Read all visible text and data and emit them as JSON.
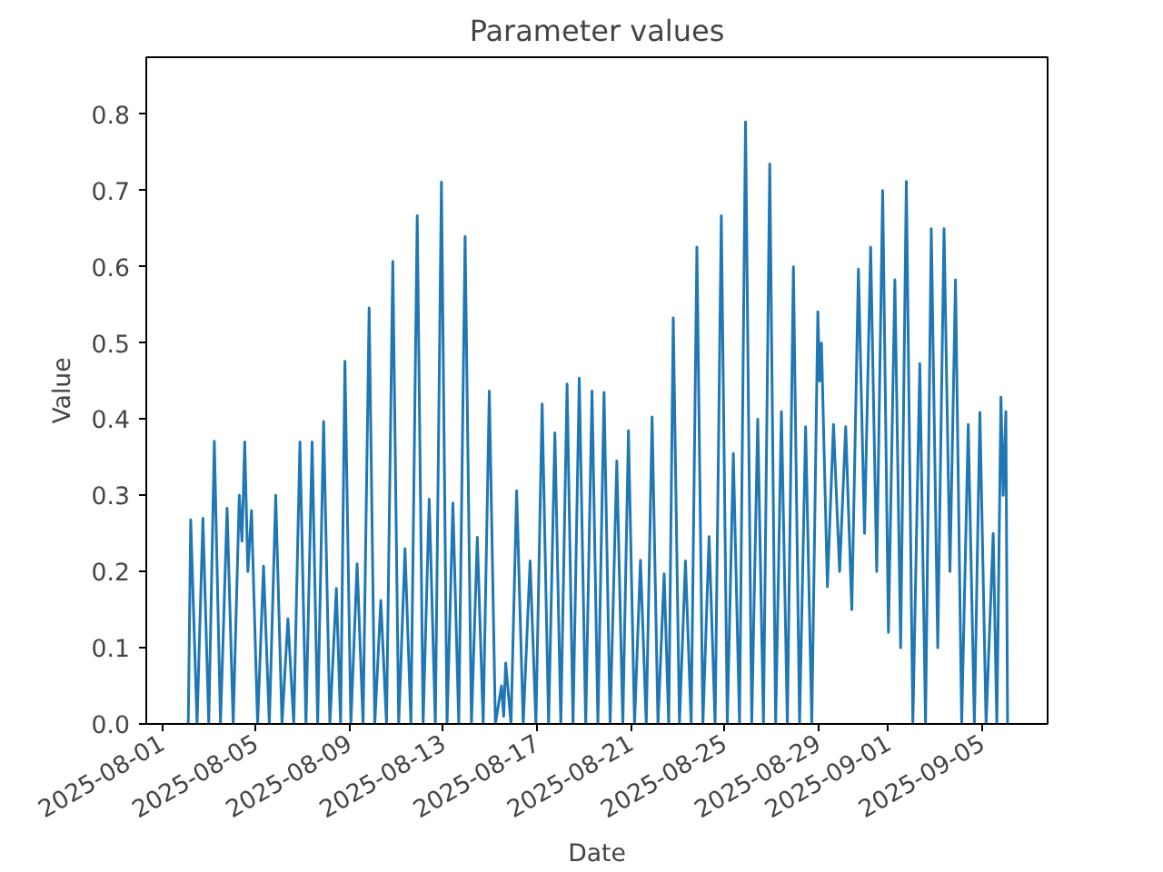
{
  "chart_data": {
    "type": "line",
    "title": "Parameter values",
    "xlabel": "Date",
    "ylabel": "Value",
    "xlim": [
      "2025-07-31T08:00",
      "2025-09-07T19:00"
    ],
    "xticks": [
      "2025-08-01",
      "2025-08-05",
      "2025-08-09",
      "2025-08-13",
      "2025-08-17",
      "2025-08-21",
      "2025-08-25",
      "2025-08-29",
      "2025-09-01",
      "2025-09-05"
    ],
    "ylim": [
      0,
      0.875
    ],
    "yticks": [
      {
        "value": 0,
        "label": "0.0"
      },
      0.1,
      0.2,
      0.3,
      0.4,
      0.5,
      0.6,
      0.7,
      0.8
    ],
    "grid": false,
    "x": [
      "2025-08-02T03:00",
      "2025-08-02T05:30",
      "2025-08-02T12:00",
      "2025-08-02T18:00",
      "2025-08-03T00:00",
      "2025-08-03T05:40",
      "2025-08-03T12:00",
      "2025-08-03T18:45",
      "2025-08-04T01:00",
      "2025-08-04T07:15",
      "2025-08-04T10:00",
      "2025-08-04T12:50",
      "2025-08-04T16:00",
      "2025-08-04T19:45",
      "2025-08-05T02:00",
      "2025-08-05T08:05",
      "2025-08-05T14:00",
      "2025-08-05T20:33",
      "2025-08-06T03:00",
      "2025-08-06T09:03",
      "2025-08-06T15:00",
      "2025-08-06T21:22",
      "2025-08-07T03:30",
      "2025-08-07T09:50",
      "2025-08-07T15:30",
      "2025-08-07T21:36",
      "2025-08-08T04:00",
      "2025-08-08T10:39",
      "2025-08-08T15:00",
      "2025-08-08T19:25",
      "2025-08-09T01:30",
      "2025-08-09T07:54",
      "2025-08-09T14:00",
      "2025-08-09T20:13",
      "2025-08-10T02:00",
      "2025-08-10T08:10",
      "2025-08-10T14:00",
      "2025-08-10T20:27",
      "2025-08-11T02:30",
      "2025-08-11T08:57",
      "2025-08-11T15:00",
      "2025-08-11T21:27",
      "2025-08-12T03:30",
      "2025-08-12T09:45",
      "2025-08-12T16:00",
      "2025-08-12T22:15",
      "2025-08-13T04:00",
      "2025-08-13T10:00",
      "2025-08-13T16:00",
      "2025-08-13T22:29",
      "2025-08-14T05:00",
      "2025-08-14T11:00",
      "2025-08-14T17:00",
      "2025-08-14T23:17",
      "2025-08-15T05:30",
      "2025-08-15T11:47",
      "2025-08-15T14:00",
      "2025-08-15T16:05",
      "2025-08-15T21:30",
      "2025-08-16T03:16",
      "2025-08-16T10:00",
      "2025-08-16T17:04",
      "2025-08-16T23:00",
      "2025-08-17T05:23",
      "2025-08-17T12:00",
      "2025-08-17T18:26",
      "2025-08-18T00:30",
      "2025-08-18T06:55",
      "2025-08-18T13:00",
      "2025-08-18T19:25",
      "2025-08-19T02:00",
      "2025-08-19T08:28",
      "2025-08-19T14:30",
      "2025-08-19T20:47",
      "2025-08-20T03:00",
      "2025-08-20T09:50",
      "2025-08-20T16:00",
      "2025-08-20T21:46",
      "2025-08-21T04:00",
      "2025-08-21T10:05",
      "2025-08-21T16:00",
      "2025-08-21T22:00",
      "2025-08-22T04:00",
      "2025-08-22T10:19",
      "2025-08-22T15:00",
      "2025-08-22T19:38",
      "2025-08-23T02:00",
      "2025-08-23T08:08",
      "2025-08-23T14:00",
      "2025-08-23T19:52",
      "2025-08-24T02:00",
      "2025-08-24T08:22",
      "2025-08-24T14:30",
      "2025-08-24T20:51",
      "2025-08-25T03:00",
      "2025-08-25T09:10",
      "2025-08-25T15:30",
      "2025-08-25T21:40",
      "2025-08-26T04:00",
      "2025-08-26T10:10",
      "2025-08-26T16:00",
      "2025-08-26T22:28",
      "2025-08-27T04:30",
      "2025-08-27T10:25",
      "2025-08-27T16:30",
      "2025-08-27T22:42",
      "2025-08-28T05:00",
      "2025-08-28T11:12",
      "2025-08-28T17:30",
      "2025-08-28T23:43",
      "2025-08-29T01:30",
      "2025-08-29T03:26",
      "2025-08-29T09:30",
      "2025-08-29T15:45",
      "2025-08-29T22:00",
      "2025-08-30T04:15",
      "2025-08-30T10:30",
      "2025-08-30T17:17",
      "2025-08-30T23:30",
      "2025-08-31T05:47",
      "2025-08-31T12:00",
      "2025-08-31T18:06",
      "2025-09-01T00:00",
      "2025-09-01T06:36",
      "2025-09-01T12:30",
      "2025-09-01T18:20",
      "2025-09-02T01:00",
      "2025-09-02T08:08",
      "2025-09-02T14:00",
      "2025-09-02T19:52",
      "2025-09-03T02:30",
      "2025-09-03T08:56",
      "2025-09-03T15:00",
      "2025-09-03T20:41",
      "2025-09-04T03:00",
      "2025-09-04T09:45",
      "2025-09-04T16:00",
      "2025-09-04T21:40",
      "2025-09-05T04:00",
      "2025-09-05T11:17",
      "2025-09-05T15:00",
      "2025-09-05T19:13",
      "2025-09-05T21:30",
      "2025-09-06T00:15",
      "2025-09-06T02:00"
    ],
    "series": [
      {
        "color": "#1f77b4",
        "values": [
          0,
          0.268,
          0,
          0.27,
          0,
          0.371,
          0,
          0.283,
          0,
          0.3,
          0.24,
          0.37,
          0.2,
          0.28,
          0,
          0.207,
          0,
          0.3,
          0,
          0.138,
          0,
          0.37,
          0,
          0.37,
          0,
          0.397,
          0,
          0.178,
          0,
          0.476,
          0,
          0.21,
          0,
          0.546,
          0,
          0.162,
          0,
          0.607,
          0,
          0.23,
          0,
          0.667,
          0,
          0.295,
          0,
          0.711,
          0,
          0.29,
          0,
          0.64,
          0,
          0.245,
          0,
          0.437,
          0,
          0.05,
          0.01,
          0.08,
          0,
          0.306,
          0,
          0.214,
          0,
          0.42,
          0,
          0.382,
          0,
          0.446,
          0,
          0.454,
          0,
          0.437,
          0,
          0.435,
          0,
          0.345,
          0,
          0.385,
          0,
          0.215,
          0,
          0.403,
          0,
          0.197,
          0,
          0.533,
          0,
          0.214,
          0,
          0.626,
          0,
          0.246,
          0,
          0.667,
          0,
          0.355,
          0,
          0.79,
          0,
          0.4,
          0,
          0.735,
          0,
          0.41,
          0,
          0.6,
          0,
          0.39,
          0,
          0.541,
          0.45,
          0.5,
          0.18,
          0.393,
          0.2,
          0.39,
          0.15,
          0.597,
          0.25,
          0.626,
          0.2,
          0.7,
          0.12,
          0.583,
          0.1,
          0.712,
          0,
          0.473,
          0,
          0.65,
          0.1,
          0.65,
          0.2,
          0.583,
          0,
          0.393,
          0,
          0.409,
          0,
          0.25,
          0,
          0.429,
          0.3,
          0.41,
          0
        ]
      }
    ]
  }
}
